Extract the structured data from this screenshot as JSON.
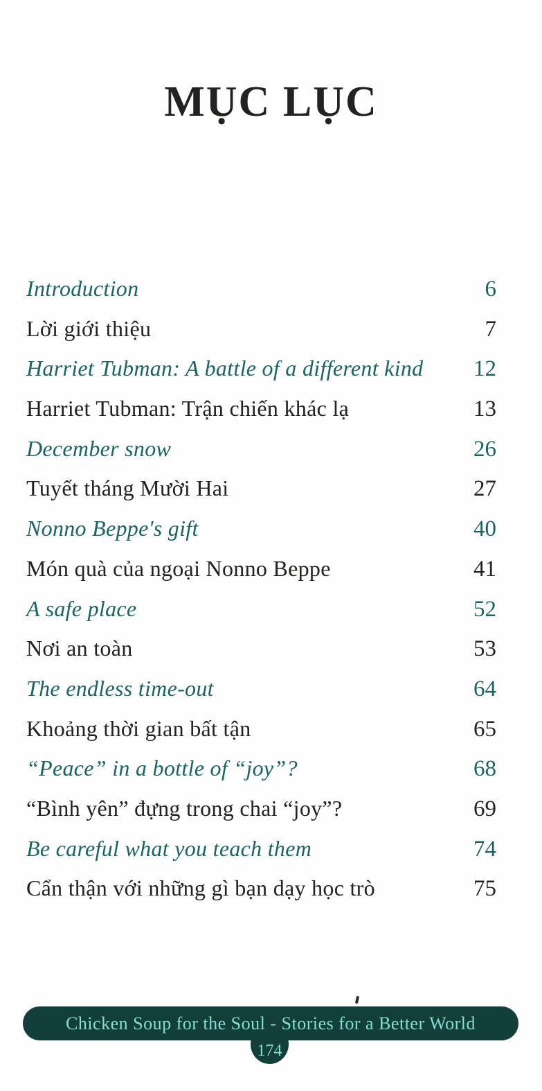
{
  "page": {
    "title": "MỤC LỤC",
    "toc": [
      {
        "title": "Introduction",
        "page": "6",
        "style": "english"
      },
      {
        "title": "Lời giới thiệu",
        "page": "7",
        "style": "vietnamese"
      },
      {
        "title": "Harriet Tubman: A battle of a different kind",
        "page": "12",
        "style": "english"
      },
      {
        "title": "Harriet Tubman: Trận chiến khác lạ",
        "page": "13",
        "style": "vietnamese"
      },
      {
        "title": "December snow",
        "page": "26",
        "style": "english"
      },
      {
        "title": "Tuyết tháng Mười Hai",
        "page": "27",
        "style": "vietnamese"
      },
      {
        "title": "Nonno Beppe's gift",
        "page": "40",
        "style": "english"
      },
      {
        "title": "Món quà của ngoại Nonno Beppe",
        "page": "41",
        "style": "vietnamese"
      },
      {
        "title": "A safe place",
        "page": "52",
        "style": "english"
      },
      {
        "title": "Nơi an toàn",
        "page": "53",
        "style": "vietnamese"
      },
      {
        "title": "The endless time-out",
        "page": "64",
        "style": "english"
      },
      {
        "title": "Khoảng thời gian bất tận",
        "page": "65",
        "style": "vietnamese"
      },
      {
        "title": "“Peace” in a bottle of “joy”?",
        "page": "68",
        "style": "english"
      },
      {
        "title": "“Bình yên” đựng trong chai “joy”?",
        "page": "69",
        "style": "vietnamese"
      },
      {
        "title": "Be careful what you teach them",
        "page": "74",
        "style": "english"
      },
      {
        "title": "Cẩn thận với những gì bạn dạy học trò",
        "page": "75",
        "style": "vietnamese"
      }
    ],
    "footer": {
      "banner": "Chicken Soup for the Soul - Stories for a Better World",
      "page_number": "174"
    },
    "colors": {
      "teal_text": "#1a6462",
      "black_text": "#20231f",
      "banner_bg": "#123f3a",
      "banner_text": "#86ddd2"
    }
  }
}
